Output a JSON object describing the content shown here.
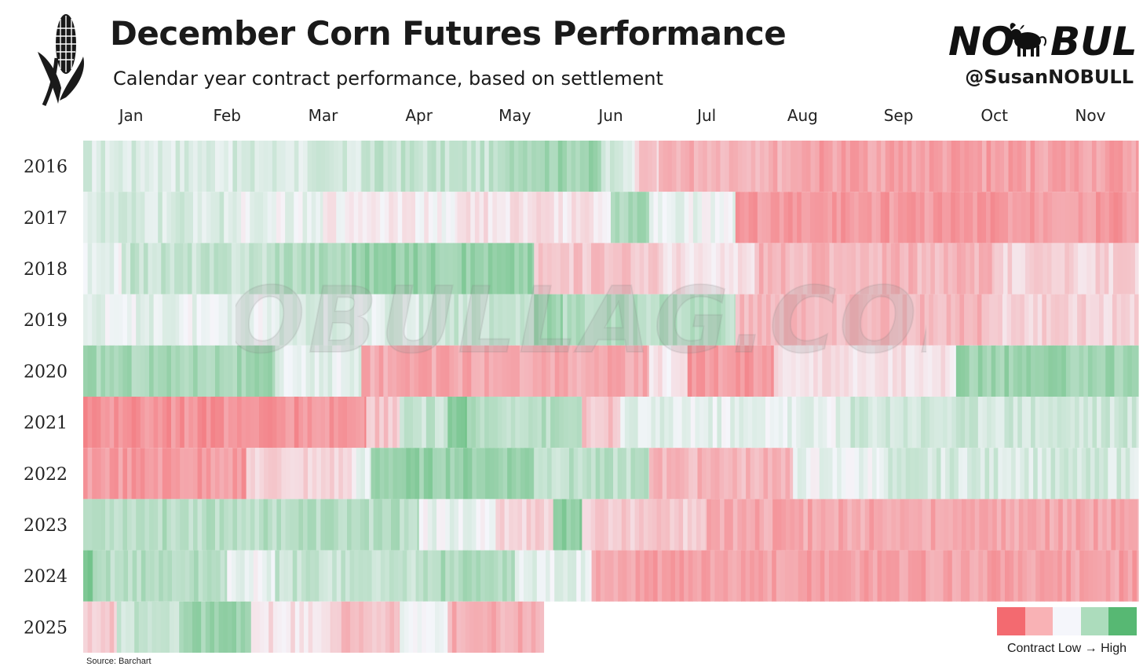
{
  "header": {
    "title": "December Corn Futures Performance",
    "subtitle": "Calendar year contract performance, based on settlement",
    "brand_handle": "@SusanNOBULL",
    "brand_logo_text": "NO BULL",
    "logo_icon": "corn-icon"
  },
  "source": "Source: Barchart",
  "watermark": "NOBULLAG.COM",
  "legend": {
    "low_label": "Contract Low",
    "arrow": "→",
    "high_label": "High",
    "colors": [
      "#f36a70",
      "#f9b2b5",
      "#f5f6fb",
      "#acdcbc",
      "#57b873"
    ]
  },
  "chart_data": {
    "type": "heatmap",
    "title": "December Corn Futures Performance",
    "subtitle": "Calendar year contract performance, based on settlement",
    "value_meaning": "position of daily settlement within the calendar-year range (-1 = contract low, +1 = contract high), approximate bands per month segment",
    "x_tick_labels": [
      "Jan",
      "Feb",
      "Mar",
      "Apr",
      "May",
      "Jun",
      "Jul",
      "Aug",
      "Sep",
      "Oct",
      "Nov"
    ],
    "x_range_months": [
      1,
      12
    ],
    "y_labels": [
      "2016",
      "2017",
      "2018",
      "2019",
      "2020",
      "2021",
      "2022",
      "2023",
      "2024",
      "2025"
    ],
    "color_scale": {
      "low": "#f36a70",
      "mid": "#f5f6fb",
      "high": "#57b873"
    },
    "rows": [
      {
        "year": "2016",
        "segments": [
          {
            "from": 1.0,
            "to": 3.9,
            "value": 0.18
          },
          {
            "from": 3.9,
            "to": 5.4,
            "value": 0.3
          },
          {
            "from": 5.4,
            "to": 6.4,
            "value": 0.55
          },
          {
            "from": 6.4,
            "to": 6.75,
            "value": 0.2
          },
          {
            "from": 6.75,
            "to": 7.0,
            "value": -0.3
          },
          {
            "from": 7.0,
            "to": 8.4,
            "value": -0.5
          },
          {
            "from": 8.4,
            "to": 12.0,
            "value": -0.6
          }
        ]
      },
      {
        "year": "2017",
        "segments": [
          {
            "from": 1.0,
            "to": 2.6,
            "value": 0.18
          },
          {
            "from": 2.6,
            "to": 3.5,
            "value": 0.05
          },
          {
            "from": 3.5,
            "to": 4.9,
            "value": -0.05
          },
          {
            "from": 4.9,
            "to": 6.5,
            "value": -0.15
          },
          {
            "from": 6.5,
            "to": 6.9,
            "value": 0.5
          },
          {
            "from": 6.9,
            "to": 7.8,
            "value": 0.05
          },
          {
            "from": 7.8,
            "to": 12.0,
            "value": -0.65
          }
        ]
      },
      {
        "year": "2018",
        "segments": [
          {
            "from": 1.0,
            "to": 1.4,
            "value": 0.05
          },
          {
            "from": 1.4,
            "to": 3.0,
            "value": 0.3
          },
          {
            "from": 3.0,
            "to": 3.8,
            "value": 0.45
          },
          {
            "from": 3.8,
            "to": 5.7,
            "value": 0.6
          },
          {
            "from": 5.7,
            "to": 7.0,
            "value": -0.35
          },
          {
            "from": 7.0,
            "to": 8.0,
            "value": -0.15
          },
          {
            "from": 8.0,
            "to": 10.5,
            "value": -0.45
          },
          {
            "from": 10.5,
            "to": 12.0,
            "value": -0.25
          }
        ]
      },
      {
        "year": "2019",
        "segments": [
          {
            "from": 1.0,
            "to": 2.0,
            "value": 0.1
          },
          {
            "from": 2.0,
            "to": 3.0,
            "value": 0.05
          },
          {
            "from": 3.0,
            "to": 4.5,
            "value": 0.15
          },
          {
            "from": 4.5,
            "to": 5.7,
            "value": 0.3
          },
          {
            "from": 5.7,
            "to": 6.0,
            "value": 0.6
          },
          {
            "from": 6.0,
            "to": 7.8,
            "value": 0.4
          },
          {
            "from": 7.8,
            "to": 10.4,
            "value": -0.45
          },
          {
            "from": 10.4,
            "to": 12.0,
            "value": -0.25
          }
        ]
      },
      {
        "year": "2020",
        "segments": [
          {
            "from": 1.0,
            "to": 3.0,
            "value": 0.5
          },
          {
            "from": 3.0,
            "to": 3.9,
            "value": 0.1
          },
          {
            "from": 3.9,
            "to": 6.9,
            "value": -0.55
          },
          {
            "from": 6.9,
            "to": 7.3,
            "value": -0.1
          },
          {
            "from": 7.3,
            "to": 8.2,
            "value": -0.65
          },
          {
            "from": 8.2,
            "to": 10.1,
            "value": -0.15
          },
          {
            "from": 10.1,
            "to": 12.0,
            "value": 0.55
          }
        ]
      },
      {
        "year": "2021",
        "segments": [
          {
            "from": 1.0,
            "to": 3.95,
            "value": -0.7
          },
          {
            "from": 3.95,
            "to": 4.3,
            "value": -0.35
          },
          {
            "from": 4.3,
            "to": 4.8,
            "value": 0.3
          },
          {
            "from": 4.8,
            "to": 5.0,
            "value": 0.7
          },
          {
            "from": 5.0,
            "to": 6.2,
            "value": 0.4
          },
          {
            "from": 6.2,
            "to": 6.6,
            "value": -0.35
          },
          {
            "from": 6.6,
            "to": 9.0,
            "value": 0.1
          },
          {
            "from": 9.0,
            "to": 12.0,
            "value": 0.25
          }
        ]
      },
      {
        "year": "2022",
        "segments": [
          {
            "from": 1.0,
            "to": 2.7,
            "value": -0.65
          },
          {
            "from": 2.7,
            "to": 3.8,
            "value": -0.25
          },
          {
            "from": 3.8,
            "to": 4.0,
            "value": 0.05
          },
          {
            "from": 4.0,
            "to": 5.7,
            "value": 0.6
          },
          {
            "from": 5.7,
            "to": 6.9,
            "value": 0.35
          },
          {
            "from": 6.9,
            "to": 8.4,
            "value": -0.45
          },
          {
            "from": 8.4,
            "to": 9.3,
            "value": 0.05
          },
          {
            "from": 9.3,
            "to": 12.0,
            "value": 0.2
          }
        ]
      },
      {
        "year": "2023",
        "segments": [
          {
            "from": 1.0,
            "to": 4.5,
            "value": 0.4
          },
          {
            "from": 4.5,
            "to": 5.3,
            "value": 0.05
          },
          {
            "from": 5.3,
            "to": 5.9,
            "value": -0.25
          },
          {
            "from": 5.9,
            "to": 6.2,
            "value": 0.65
          },
          {
            "from": 6.2,
            "to": 7.5,
            "value": -0.3
          },
          {
            "from": 7.5,
            "to": 12.0,
            "value": -0.55
          }
        ]
      },
      {
        "year": "2024",
        "segments": [
          {
            "from": 1.0,
            "to": 1.1,
            "value": 0.7
          },
          {
            "from": 1.1,
            "to": 2.5,
            "value": 0.4
          },
          {
            "from": 2.5,
            "to": 3.0,
            "value": 0.05
          },
          {
            "from": 3.0,
            "to": 4.5,
            "value": 0.3
          },
          {
            "from": 4.5,
            "to": 5.5,
            "value": 0.45
          },
          {
            "from": 5.5,
            "to": 6.3,
            "value": 0.1
          },
          {
            "from": 6.3,
            "to": 12.0,
            "value": -0.6
          }
        ]
      },
      {
        "year": "2025",
        "segments": [
          {
            "from": 1.0,
            "to": 1.35,
            "value": -0.35
          },
          {
            "from": 1.35,
            "to": 2.0,
            "value": 0.3
          },
          {
            "from": 2.0,
            "to": 2.75,
            "value": 0.55
          },
          {
            "from": 2.75,
            "to": 3.6,
            "value": -0.15
          },
          {
            "from": 3.6,
            "to": 4.3,
            "value": -0.4
          },
          {
            "from": 4.3,
            "to": 4.8,
            "value": 0.1
          },
          {
            "from": 4.8,
            "to": 5.8,
            "value": -0.5
          }
        ]
      }
    ]
  }
}
